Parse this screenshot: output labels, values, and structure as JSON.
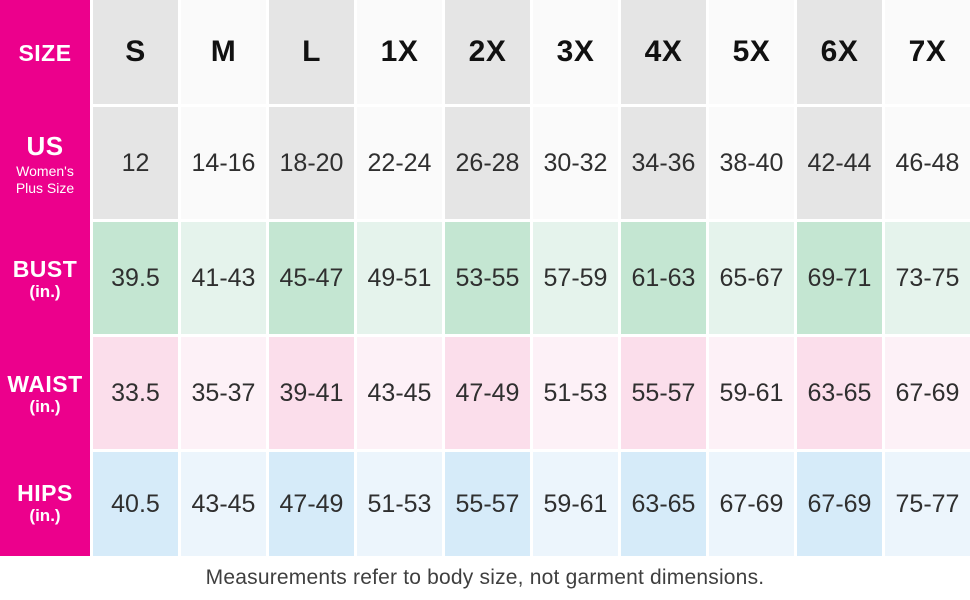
{
  "chart_data": {
    "type": "table",
    "header": {
      "label": "SIZE",
      "columns": [
        "S",
        "M",
        "L",
        "1X",
        "2X",
        "3X",
        "4X",
        "5X",
        "6X",
        "7X"
      ]
    },
    "rows": [
      {
        "label": "US",
        "sublabel": "Women's Plus Size",
        "values": [
          "12",
          "14-16",
          "18-20",
          "22-24",
          "26-28",
          "30-32",
          "34-36",
          "38-40",
          "42-44",
          "46-48"
        ]
      },
      {
        "label": "BUST",
        "sublabel": "(in.)",
        "values": [
          "39.5",
          "41-43",
          "45-47",
          "49-51",
          "53-55",
          "57-59",
          "61-63",
          "65-67",
          "69-71",
          "73-75"
        ]
      },
      {
        "label": "WAIST",
        "sublabel": "(in.)",
        "values": [
          "33.5",
          "35-37",
          "39-41",
          "43-45",
          "47-49",
          "51-53",
          "55-57",
          "59-61",
          "63-65",
          "67-69"
        ]
      },
      {
        "label": "HIPS",
        "sublabel": "(in.)",
        "values": [
          "40.5",
          "43-45",
          "47-49",
          "51-53",
          "55-57",
          "59-61",
          "63-65",
          "67-69",
          "67-69",
          "75-77"
        ]
      }
    ],
    "caption": "Measurements refer to body size, not garment dimensions."
  },
  "colors": {
    "accent_magenta": "#ec008c",
    "gray_dark": "#e5e5e5",
    "gray_light": "#fafafa",
    "mint_dark": "#c4e6d2",
    "mint_light": "#e5f3ec",
    "pink_dark": "#fbdeeb",
    "pink_light": "#fdf1f7",
    "blue_dark": "#d6ebf9",
    "blue_light": "#ecf5fc"
  }
}
